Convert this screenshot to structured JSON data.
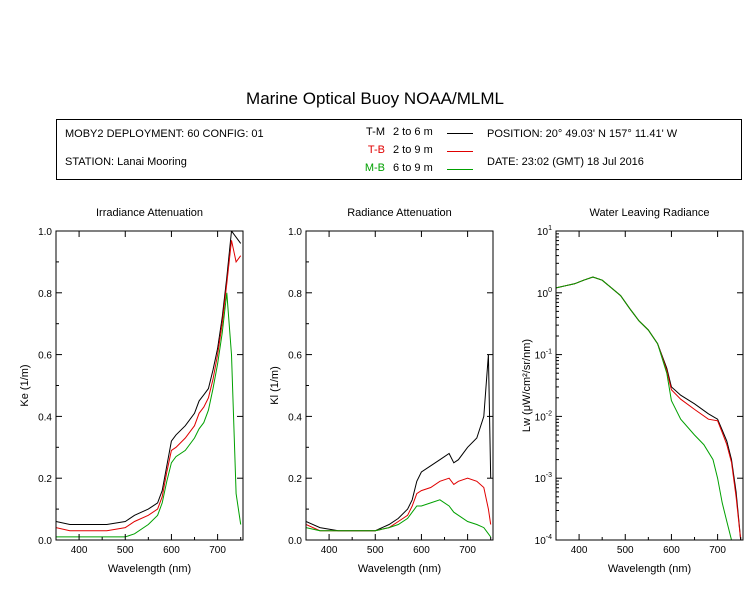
{
  "header": {
    "title": "Marine Optical Buoy NOAA/MLML",
    "deployment": "MOBY2 DEPLOYMENT: 60 CONFIG: 01",
    "station": "STATION: Lanai Mooring",
    "position": "POSITION: 20° 49.03' N   157° 11.41' W",
    "date": "DATE: 23:02 (GMT) 18 Jul 2016",
    "legend": [
      {
        "code": "T-M",
        "range": "2 to 6  m",
        "color": "#000000"
      },
      {
        "code": "T-B",
        "range": "2 to 9  m",
        "color": "#e00000"
      },
      {
        "code": "M-B",
        "range": "6 to 9  m",
        "color": "#00a000"
      }
    ]
  },
  "chart_data": [
    {
      "type": "line",
      "title": "Irradiance Attenuation",
      "xlabel": "Wavelength (nm)",
      "ylabel": "Ke  (1/m)",
      "xlim": [
        350,
        755
      ],
      "ylim": [
        0,
        1.0
      ],
      "x_ticks": [
        "400",
        "500",
        "600",
        "700"
      ],
      "y_ticks": [
        "0.0",
        "0.2",
        "0.4",
        "0.6",
        "0.8",
        "1.0"
      ],
      "series": [
        {
          "name": "T-M",
          "color": "#000000",
          "x": [
            350,
            380,
            420,
            460,
            500,
            520,
            550,
            570,
            580,
            590,
            600,
            610,
            630,
            650,
            660,
            670,
            680,
            690,
            700,
            710,
            720,
            730,
            740,
            750
          ],
          "y": [
            0.06,
            0.05,
            0.05,
            0.05,
            0.06,
            0.08,
            0.1,
            0.12,
            0.16,
            0.24,
            0.32,
            0.34,
            0.37,
            0.41,
            0.45,
            0.47,
            0.49,
            0.55,
            0.62,
            0.72,
            0.85,
            1.0,
            0.98,
            0.96
          ]
        },
        {
          "name": "T-B",
          "color": "#e00000",
          "x": [
            350,
            380,
            420,
            460,
            500,
            520,
            550,
            570,
            580,
            590,
            600,
            610,
            630,
            650,
            660,
            670,
            680,
            690,
            700,
            710,
            720,
            730,
            740,
            750
          ],
          "y": [
            0.04,
            0.03,
            0.03,
            0.03,
            0.04,
            0.06,
            0.08,
            0.1,
            0.14,
            0.22,
            0.29,
            0.3,
            0.33,
            0.37,
            0.41,
            0.43,
            0.46,
            0.52,
            0.6,
            0.7,
            0.83,
            0.97,
            0.9,
            0.92
          ]
        },
        {
          "name": "M-B",
          "color": "#00a000",
          "x": [
            350,
            380,
            420,
            460,
            500,
            520,
            550,
            570,
            580,
            590,
            600,
            610,
            630,
            650,
            660,
            670,
            680,
            690,
            700,
            710,
            720,
            730,
            740,
            750
          ],
          "y": [
            0.01,
            0.01,
            0.01,
            0.01,
            0.01,
            0.02,
            0.05,
            0.08,
            0.12,
            0.19,
            0.25,
            0.27,
            0.29,
            0.33,
            0.36,
            0.38,
            0.42,
            0.49,
            0.57,
            0.67,
            0.8,
            0.6,
            0.15,
            0.05
          ]
        }
      ]
    },
    {
      "type": "line",
      "title": "Radiance Attenuation",
      "xlabel": "Wavelength (nm)",
      "ylabel": "Kl  (1/m)",
      "xlim": [
        350,
        755
      ],
      "ylim": [
        0,
        1.0
      ],
      "x_ticks": [
        "400",
        "500",
        "600",
        "700"
      ],
      "y_ticks": [
        "0.0",
        "0.2",
        "0.4",
        "0.6",
        "0.8",
        "1.0"
      ],
      "series": [
        {
          "name": "T-M",
          "color": "#000000",
          "x": [
            350,
            380,
            420,
            460,
            500,
            530,
            550,
            570,
            580,
            590,
            600,
            620,
            640,
            660,
            670,
            680,
            700,
            720,
            735,
            745,
            750
          ],
          "y": [
            0.06,
            0.04,
            0.03,
            0.03,
            0.03,
            0.05,
            0.07,
            0.1,
            0.13,
            0.19,
            0.22,
            0.24,
            0.26,
            0.28,
            0.25,
            0.26,
            0.3,
            0.33,
            0.4,
            0.6,
            0.2
          ]
        },
        {
          "name": "T-B",
          "color": "#e00000",
          "x": [
            350,
            380,
            420,
            460,
            500,
            530,
            550,
            570,
            580,
            590,
            600,
            620,
            640,
            660,
            670,
            680,
            700,
            720,
            735,
            745,
            750
          ],
          "y": [
            0.05,
            0.03,
            0.03,
            0.03,
            0.03,
            0.04,
            0.06,
            0.08,
            0.11,
            0.15,
            0.16,
            0.17,
            0.19,
            0.2,
            0.18,
            0.19,
            0.2,
            0.19,
            0.17,
            0.1,
            0.05
          ]
        },
        {
          "name": "M-B",
          "color": "#00a000",
          "x": [
            350,
            380,
            420,
            460,
            500,
            530,
            550,
            570,
            580,
            590,
            600,
            620,
            640,
            660,
            670,
            680,
            700,
            720,
            735,
            745,
            750
          ],
          "y": [
            0.04,
            0.03,
            0.03,
            0.03,
            0.03,
            0.04,
            0.05,
            0.07,
            0.09,
            0.11,
            0.11,
            0.12,
            0.13,
            0.11,
            0.09,
            0.08,
            0.06,
            0.05,
            0.04,
            0.02,
            0.01
          ]
        }
      ]
    },
    {
      "type": "line",
      "title": "Water Leaving Radiance",
      "xlabel": "Wavelength (nm)",
      "ylabel": "Lw  (μW/cm²/sr/nm)",
      "xlim": [
        350,
        755
      ],
      "ylim": [
        0.0001,
        10
      ],
      "yscale": "log",
      "x_ticks": [
        "400",
        "500",
        "600",
        "700"
      ],
      "y_ticks": [
        {
          "base": "10",
          "exp": "1"
        },
        {
          "base": "10",
          "exp": "0"
        },
        {
          "base": "10",
          "exp": "-1"
        },
        {
          "base": "10",
          "exp": "-2"
        },
        {
          "base": "10",
          "exp": "-3"
        },
        {
          "base": "10",
          "exp": "-4"
        }
      ],
      "series": [
        {
          "name": "T-M",
          "color": "#000000",
          "x": [
            350,
            370,
            390,
            410,
            430,
            450,
            470,
            490,
            510,
            530,
            550,
            570,
            590,
            600,
            620,
            650,
            680,
            700,
            710,
            720,
            730,
            740,
            750
          ],
          "y": [
            1.2,
            1.3,
            1.4,
            1.6,
            1.8,
            1.6,
            1.2,
            0.9,
            0.55,
            0.35,
            0.25,
            0.15,
            0.06,
            0.03,
            0.022,
            0.016,
            0.011,
            0.009,
            0.006,
            0.004,
            0.002,
            0.0006,
            0.0001
          ]
        },
        {
          "name": "T-B",
          "color": "#e00000",
          "x": [
            350,
            370,
            390,
            410,
            430,
            450,
            470,
            490,
            510,
            530,
            550,
            570,
            590,
            600,
            620,
            650,
            680,
            700,
            710,
            720,
            730,
            740,
            750
          ],
          "y": [
            1.2,
            1.3,
            1.4,
            1.6,
            1.8,
            1.6,
            1.2,
            0.9,
            0.55,
            0.35,
            0.25,
            0.15,
            0.055,
            0.027,
            0.019,
            0.013,
            0.009,
            0.0085,
            0.0055,
            0.0035,
            0.0018,
            0.0005,
            0.0001
          ]
        },
        {
          "name": "M-B",
          "color": "#00a000",
          "x": [
            350,
            370,
            390,
            410,
            430,
            450,
            470,
            490,
            510,
            530,
            550,
            570,
            590,
            600,
            620,
            650,
            670,
            690,
            700,
            710,
            720,
            730,
            740
          ],
          "y": [
            1.2,
            1.3,
            1.4,
            1.6,
            1.8,
            1.6,
            1.2,
            0.9,
            0.55,
            0.35,
            0.25,
            0.15,
            0.05,
            0.018,
            0.009,
            0.005,
            0.0035,
            0.002,
            0.001,
            0.0004,
            0.0002,
            0.0001,
            0.0001
          ]
        }
      ]
    }
  ]
}
